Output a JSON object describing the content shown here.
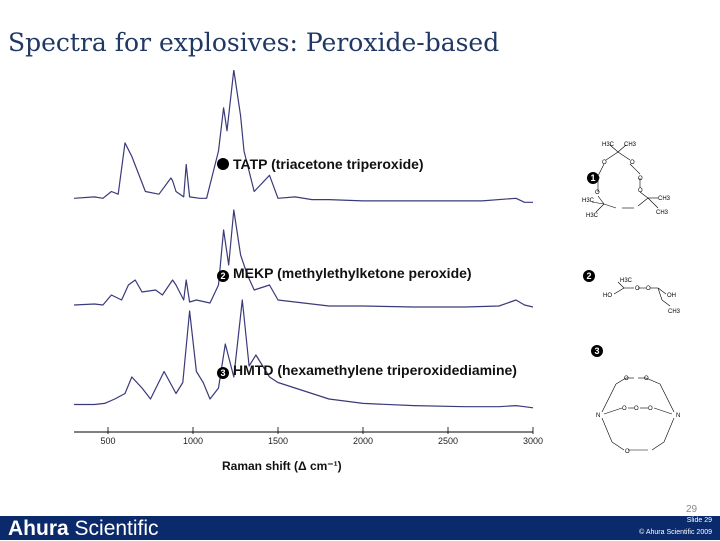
{
  "title": "Spectra for explosives: Peroxide-based",
  "chart_data": {
    "type": "line",
    "xlabel": "Raman shift (Δ cm⁻¹)",
    "xlim": [
      300,
      3000
    ],
    "x_ticks": [
      "500",
      "1000",
      "1500",
      "2000",
      "2500",
      "3000"
    ],
    "grid": false,
    "series": [
      {
        "name": "TATP (triacetone triperoxide)",
        "number": "1",
        "x": [
          300,
          420,
          470,
          520,
          560,
          600,
          640,
          720,
          800,
          870,
          880,
          900,
          945,
          960,
          980,
          1040,
          1080,
          1150,
          1180,
          1200,
          1240,
          1280,
          1300,
          1360,
          1450,
          1500,
          1600,
          1700,
          1800,
          2000,
          2200,
          2500,
          2700,
          2900,
          2950,
          3000
        ],
        "y": [
          0.05,
          0.06,
          0.05,
          0.1,
          0.08,
          0.46,
          0.36,
          0.1,
          0.08,
          0.2,
          0.18,
          0.1,
          0.06,
          0.3,
          0.06,
          0.05,
          0.05,
          0.4,
          0.72,
          0.55,
          1.0,
          0.66,
          0.4,
          0.1,
          0.22,
          0.05,
          0.06,
          0.04,
          0.04,
          0.03,
          0.03,
          0.03,
          0.03,
          0.05,
          0.02,
          0.02
        ]
      },
      {
        "name": "MEKP (methylethylketone peroxide)",
        "number": "2",
        "x": [
          300,
          420,
          470,
          520,
          580,
          620,
          660,
          700,
          780,
          820,
          880,
          900,
          945,
          960,
          980,
          1020,
          1100,
          1150,
          1180,
          1210,
          1240,
          1280,
          1320,
          1360,
          1450,
          1500,
          1600,
          1700,
          1800,
          2000,
          2300,
          2600,
          2800,
          2900,
          2950,
          3000
        ],
        "y": [
          0.05,
          0.06,
          0.05,
          0.15,
          0.1,
          0.25,
          0.3,
          0.18,
          0.2,
          0.15,
          0.3,
          0.25,
          0.1,
          0.3,
          0.08,
          0.1,
          0.07,
          0.25,
          0.8,
          0.45,
          1.0,
          0.55,
          0.35,
          0.2,
          0.25,
          0.1,
          0.08,
          0.06,
          0.04,
          0.04,
          0.03,
          0.03,
          0.04,
          0.1,
          0.05,
          0.03
        ]
      },
      {
        "name": "HMTD (hexamethylene triperoxidediamine)",
        "number": "3",
        "x": [
          300,
          420,
          480,
          540,
          600,
          640,
          700,
          750,
          830,
          900,
          940,
          980,
          1020,
          1060,
          1100,
          1150,
          1190,
          1240,
          1290,
          1330,
          1370,
          1450,
          1500,
          1600,
          1700,
          1800,
          2000,
          2300,
          2600,
          2800,
          2900,
          2950,
          3000
        ],
        "y": [
          0.05,
          0.05,
          0.06,
          0.1,
          0.15,
          0.3,
          0.2,
          0.1,
          0.35,
          0.15,
          0.25,
          0.9,
          0.35,
          0.25,
          0.1,
          0.2,
          0.6,
          0.3,
          1.0,
          0.4,
          0.5,
          0.3,
          0.25,
          0.2,
          0.15,
          0.1,
          0.06,
          0.04,
          0.03,
          0.03,
          0.04,
          0.03,
          0.02
        ]
      }
    ]
  },
  "structures": {
    "tatp": [
      "H3C",
      "CH3",
      "O",
      "O",
      "O",
      "O",
      "O",
      "O",
      "H3C",
      "CH3",
      "H3C",
      "CH3"
    ],
    "mekp": [
      "H3C",
      "HO",
      "O",
      "O",
      "OH",
      "CH3"
    ],
    "hmtd": [
      "O",
      "O",
      "O",
      "O",
      "O",
      "O",
      "N",
      "N"
    ]
  },
  "footer": {
    "logo_bold": "Ahura",
    "logo_rest": " Scientific",
    "slide_no": "Slide 29",
    "page_no": "29",
    "copyright": "© Ahura Scientific 2009"
  },
  "colors": {
    "footer": "#0a2a6b",
    "spectrum": "#3a3a7a",
    "title": "#1f3864"
  }
}
